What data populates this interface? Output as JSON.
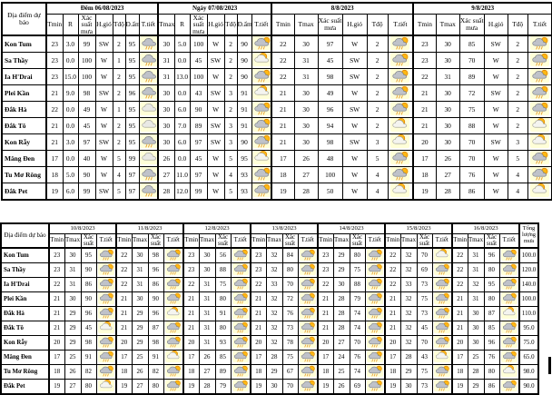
{
  "icon_names": {
    "rain": "rain-cloud-icon",
    "cloud": "cloud-icon",
    "sun_rain": "sun-rain-cloud-icon",
    "sun_cloud": "sun-cloud-icon"
  },
  "colors": {
    "icon_chip_bg": "#ffffd8",
    "sun": "#FDB813",
    "sun_outline": "#E07C00",
    "rain_cloud": "#bfc2c9",
    "white_cloud": "#f4f4ef",
    "rain_strokes": "#E8A33C",
    "border": "#000000"
  },
  "table1": {
    "corner_label": "Địa điểm dự báo",
    "groups": [
      {
        "title": "Đêm 06/08/2023",
        "cols": [
          "Tmin",
          "R",
          "Xác suất mưa",
          "H.gió",
          "Tđộ",
          "Đ.ẩm",
          "T.tiết"
        ]
      },
      {
        "title": "Ngày 07/08/2023",
        "cols": [
          "Tmax",
          "R",
          "Xác suất mưa",
          "H.gió",
          "Tđộ",
          "Đ.ẩm",
          "T.tiết"
        ]
      },
      {
        "title": "8/8/2023",
        "cols": [
          "Tmin",
          "Tmax",
          "Xác suất mưa",
          "H.gió",
          "Tđộ",
          "T.tiết"
        ]
      },
      {
        "title": "9/8/2023",
        "cols": [
          "Tmin",
          "Tmax",
          "Xác suất mưa",
          "H.gió",
          "Tđộ",
          "T.tiết"
        ]
      }
    ],
    "rows": [
      {
        "location": "Kon Tum",
        "cells": [
          "23",
          "3.0",
          "99",
          "SW",
          "2",
          "95",
          "icon:rain",
          "30",
          "5.0",
          "100",
          "W",
          "2",
          "90",
          "icon:sun_rain",
          "22",
          "30",
          "97",
          "W",
          "2",
          "icon:sun_rain",
          "23",
          "30",
          "85",
          "SW",
          "2",
          "icon:sun_rain"
        ]
      },
      {
        "location": "Sa Thầy",
        "cells": [
          "23",
          "0.0",
          "100",
          "W",
          "1",
          "95",
          "icon:rain",
          "31",
          "0.0",
          "45",
          "SW",
          "2",
          "90",
          "icon:sun_cloud",
          "22",
          "31",
          "45",
          "SW",
          "2",
          "icon:sun_rain",
          "23",
          "30",
          "70",
          "W",
          "2",
          "icon:sun_rain"
        ]
      },
      {
        "location": "Ia H'Drai",
        "cells": [
          "23",
          "15.0",
          "100",
          "W",
          "2",
          "95",
          "icon:rain",
          "31",
          "13.0",
          "100",
          "W",
          "2",
          "90",
          "icon:sun_rain",
          "22",
          "31",
          "98",
          "SW",
          "2",
          "icon:sun_rain",
          "22",
          "31",
          "89",
          "W",
          "2",
          "icon:sun_rain"
        ]
      },
      {
        "location": "Plei Kần",
        "cells": [
          "21",
          "9.0",
          "98",
          "SW",
          "2",
          "96",
          "icon:rain",
          "30",
          "0.0",
          "43",
          "SW",
          "3",
          "91",
          "icon:sun_cloud",
          "21",
          "30",
          "49",
          "W",
          "2",
          "icon:sun_rain",
          "21",
          "30",
          "72",
          "SW",
          "2",
          "icon:sun_rain"
        ]
      },
      {
        "location": "Đắk Hà",
        "cells": [
          "22",
          "0.0",
          "49",
          "W",
          "1",
          "95",
          "icon:cloud",
          "30",
          "6.0",
          "90",
          "W",
          "2",
          "91",
          "icon:sun_rain",
          "21",
          "30",
          "96",
          "SW",
          "2",
          "icon:sun_rain",
          "21",
          "30",
          "75",
          "W",
          "2",
          "icon:sun_rain"
        ]
      },
      {
        "location": "Đắk Tô",
        "cells": [
          "21",
          "0.0",
          "45",
          "W",
          "2",
          "95",
          "icon:cloud",
          "30",
          "7.0",
          "89",
          "SW",
          "3",
          "91",
          "icon:sun_rain",
          "21",
          "30",
          "94",
          "W",
          "2",
          "icon:sun_cloud",
          "21",
          "30",
          "88",
          "W",
          "2",
          "icon:sun_cloud"
        ]
      },
      {
        "location": "Kon Rẫy",
        "cells": [
          "21",
          "3.0",
          "97",
          "SW",
          "2",
          "95",
          "icon:rain",
          "30",
          "6.0",
          "97",
          "SW",
          "3",
          "90",
          "icon:sun_rain",
          "21",
          "30",
          "98",
          "SW",
          "3",
          "icon:sun_cloud",
          "20",
          "30",
          "70",
          "SW",
          "3",
          "icon:sun_cloud"
        ]
      },
      {
        "location": "Măng Đen",
        "cells": [
          "17",
          "0.0",
          "40",
          "W",
          "5",
          "99",
          "icon:cloud",
          "26",
          "0.0",
          "45",
          "W",
          "5",
          "95",
          "icon:sun_cloud",
          "17",
          "26",
          "48",
          "W",
          "5",
          "icon:sun_rain",
          "17",
          "26",
          "70",
          "W",
          "5",
          "icon:sun_rain"
        ]
      },
      {
        "location": "Tu Mơ Rông",
        "cells": [
          "18",
          "5.0",
          "90",
          "W",
          "4",
          "97",
          "icon:rain",
          "27",
          "11.0",
          "97",
          "W",
          "4",
          "93",
          "icon:sun_rain",
          "18",
          "27",
          "100",
          "W",
          "4",
          "icon:sun_rain",
          "18",
          "27",
          "76",
          "W",
          "4",
          "icon:sun_rain"
        ]
      },
      {
        "location": "Đắk Pet",
        "cells": [
          "19",
          "6.0",
          "99",
          "SW",
          "5",
          "97",
          "icon:rain",
          "28",
          "12.0",
          "99",
          "W",
          "5",
          "93",
          "icon:sun_rain",
          "19",
          "28",
          "50",
          "W",
          "4",
          "icon:sun_cloud",
          "19",
          "28",
          "86",
          "W",
          "4",
          "icon:sun_cloud"
        ]
      }
    ]
  },
  "table2": {
    "corner_label": "Địa điểm dự báo",
    "total_label": "Tổng lượng mưa",
    "groups": [
      {
        "title": "10/8/2023",
        "cols": [
          "Tmin",
          "Tmax",
          "Xác suất",
          "T.tiết"
        ]
      },
      {
        "title": "11/8/2023",
        "cols": [
          "Tmin",
          "Tmax",
          "Xác suất",
          "T.tiết"
        ]
      },
      {
        "title": "12/8/2023",
        "cols": [
          "Tmin",
          "Tmax",
          "Xác suất",
          "T.tiết"
        ]
      },
      {
        "title": "13/8/2023",
        "cols": [
          "Tmin",
          "Tmax",
          "Xác suất",
          "T.tiết"
        ]
      },
      {
        "title": "14/8/2023",
        "cols": [
          "Tmin",
          "Tmax",
          "Xác suất",
          "T.tiết"
        ]
      },
      {
        "title": "15/8/2023",
        "cols": [
          "Tmin",
          "Tmax",
          "Xác suất",
          "T.tiết"
        ]
      },
      {
        "title": "16/8/2023",
        "cols": [
          "Tmin",
          "Tmax",
          "Xác suất",
          "T.tiết"
        ]
      }
    ],
    "rows": [
      {
        "location": "Kon Tum",
        "cells": [
          "23",
          "30",
          "95",
          "icon:sun_rain",
          "22",
          "30",
          "98",
          "icon:sun_rain",
          "23",
          "30",
          "56",
          "icon:sun_rain",
          "23",
          "32",
          "84",
          "icon:sun_rain",
          "23",
          "29",
          "80",
          "icon:sun_rain",
          "22",
          "32",
          "70",
          "icon:sun_cloud",
          "22",
          "31",
          "96",
          "icon:sun_rain"
        ],
        "total": "100.0"
      },
      {
        "location": "Sa Thầy",
        "cells": [
          "23",
          "31",
          "90",
          "icon:sun_rain",
          "22",
          "31",
          "96",
          "icon:sun_rain",
          "23",
          "30",
          "88",
          "icon:sun_rain",
          "23",
          "32",
          "80",
          "icon:sun_rain",
          "23",
          "29",
          "75",
          "icon:sun_rain",
          "22",
          "32",
          "69",
          "icon:sun_rain",
          "22",
          "31",
          "80",
          "icon:sun_rain"
        ],
        "total": "120.0"
      },
      {
        "location": "Ia H'Drai",
        "cells": [
          "22",
          "31",
          "86",
          "icon:sun_rain",
          "22",
          "31",
          "86",
          "icon:sun_rain",
          "22",
          "31",
          "75",
          "icon:sun_rain",
          "22",
          "33",
          "70",
          "icon:sun_rain",
          "22",
          "30",
          "88",
          "icon:sun_rain",
          "22",
          "33",
          "73",
          "icon:sun_rain",
          "22",
          "32",
          "95",
          "icon:sun_rain"
        ],
        "total": "140.0"
      },
      {
        "location": "Plei Kần",
        "cells": [
          "21",
          "30",
          "90",
          "icon:sun_rain",
          "21",
          "30",
          "90",
          "icon:sun_rain",
          "21",
          "31",
          "80",
          "icon:sun_rain",
          "21",
          "32",
          "72",
          "icon:sun_rain",
          "21",
          "28",
          "79",
          "icon:sun_rain",
          "21",
          "32",
          "75",
          "icon:sun_rain",
          "21",
          "31",
          "80",
          "icon:sun_rain"
        ],
        "total": "100.0"
      },
      {
        "location": "Đắk Hà",
        "cells": [
          "21",
          "29",
          "96",
          "icon:sun_rain",
          "21",
          "29",
          "96",
          "icon:sun_cloud",
          "21",
          "31",
          "91",
          "icon:sun_rain",
          "21",
          "32",
          "76",
          "icon:sun_rain",
          "21",
          "28",
          "74",
          "icon:sun_rain",
          "21",
          "32",
          "73",
          "icon:sun_rain",
          "21",
          "30",
          "87",
          "icon:sun_cloud"
        ],
        "total": "110.0"
      },
      {
        "location": "Đắk Tô",
        "cells": [
          "21",
          "29",
          "45",
          "icon:sun_cloud",
          "21",
          "29",
          "87",
          "icon:sun_rain",
          "21",
          "31",
          "80",
          "icon:sun_rain",
          "21",
          "32",
          "73",
          "icon:sun_rain",
          "21",
          "28",
          "74",
          "icon:sun_rain",
          "21",
          "32",
          "45",
          "icon:sun_rain",
          "21",
          "30",
          "85",
          "icon:sun_rain"
        ],
        "total": "95.0"
      },
      {
        "location": "Kon Rẫy",
        "cells": [
          "20",
          "29",
          "98",
          "icon:sun_rain",
          "20",
          "29",
          "98",
          "icon:sun_rain",
          "20",
          "31",
          "93",
          "icon:sun_rain",
          "20",
          "32",
          "78",
          "icon:sun_rain",
          "20",
          "27",
          "70",
          "icon:sun_rain",
          "20",
          "32",
          "70",
          "icon:sun_rain",
          "20",
          "30",
          "96",
          "icon:sun_rain"
        ],
        "total": "75.0"
      },
      {
        "location": "Măng Đen",
        "cells": [
          "17",
          "25",
          "91",
          "icon:sun_rain",
          "17",
          "25",
          "91",
          "icon:sun_cloud",
          "17",
          "26",
          "85",
          "icon:sun_rain",
          "17",
          "28",
          "75",
          "icon:sun_rain",
          "17",
          "24",
          "76",
          "icon:sun_rain",
          "17",
          "28",
          "43",
          "icon:sun_cloud",
          "17",
          "25",
          "76",
          "icon:sun_rain"
        ],
        "total": "65.0"
      },
      {
        "location": "Tu Mơ Rông",
        "cells": [
          "18",
          "26",
          "82",
          "icon:sun_rain",
          "18",
          "26",
          "82",
          "icon:sun_rain",
          "18",
          "27",
          "89",
          "icon:sun_rain",
          "18",
          "29",
          "67",
          "icon:sun_rain",
          "18",
          "25",
          "74",
          "icon:sun_rain",
          "18",
          "29",
          "75",
          "icon:sun_rain",
          "18",
          "28",
          "80",
          "icon:sun_cloud"
        ],
        "total": "98.0"
      },
      {
        "location": "Đắk Pet",
        "cells": [
          "19",
          "27",
          "80",
          "icon:sun_cloud",
          "19",
          "27",
          "80",
          "icon:sun_rain",
          "19",
          "28",
          "79",
          "icon:sun_rain",
          "19",
          "30",
          "70",
          "icon:sun_rain",
          "19",
          "26",
          "69",
          "icon:sun_rain",
          "19",
          "30",
          "73",
          "icon:sun_rain",
          "19",
          "29",
          "86",
          "icon:sun_rain"
        ],
        "total": "90.0"
      }
    ]
  }
}
